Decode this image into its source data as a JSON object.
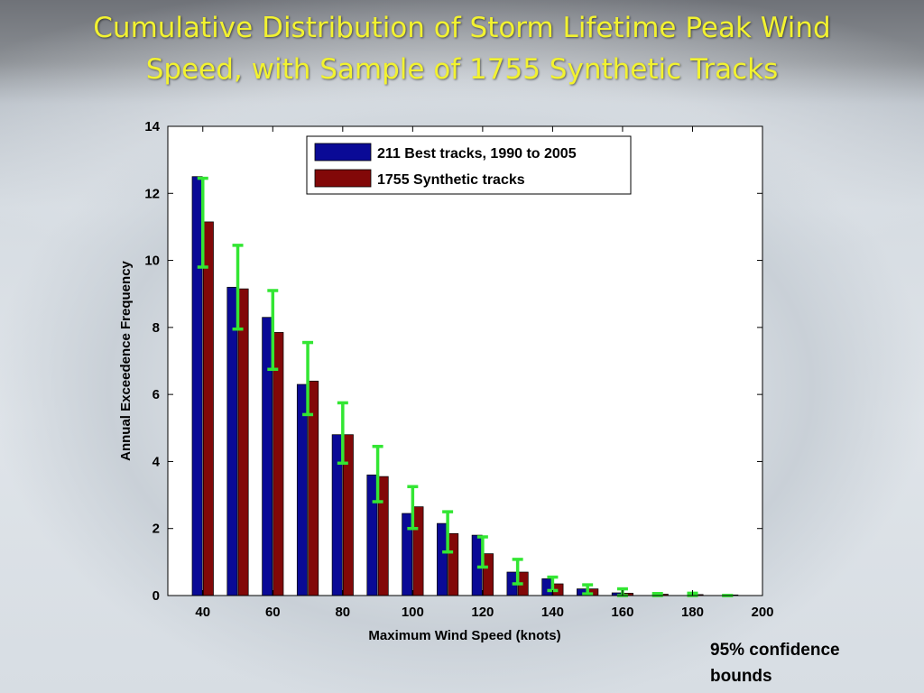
{
  "slide": {
    "title_line1": "Cumulative Distribution of Storm Lifetime Peak Wind",
    "title_line2": "Speed, with Sample of 1755 Synthetic Tracks",
    "note_line1": "95% confidence",
    "note_line2": "bounds"
  },
  "colors": {
    "title": "#f2f230",
    "best_tracks": "#0a0a96",
    "synthetic_tracks": "#820808",
    "error_bars": "#33e633"
  },
  "chart_data": {
    "type": "bar",
    "xlabel": "Maximum Wind Speed (knots)",
    "ylabel": "Annual Exceedence Frequency",
    "xlim": [
      30,
      200
    ],
    "ylim": [
      0,
      14
    ],
    "xticks": [
      40,
      60,
      80,
      100,
      120,
      140,
      160,
      180,
      200
    ],
    "yticks": [
      0,
      2,
      4,
      6,
      8,
      10,
      12,
      14
    ],
    "x": [
      40,
      50,
      60,
      70,
      80,
      90,
      100,
      110,
      120,
      130,
      140,
      150,
      160,
      170,
      180,
      190
    ],
    "series": [
      {
        "name": "211 Best tracks, 1990 to 2005",
        "color": "#0a0a96",
        "values": [
          12.5,
          9.2,
          8.3,
          6.3,
          4.8,
          3.6,
          2.45,
          2.15,
          1.8,
          0.7,
          0.5,
          0.2,
          0.08,
          0.0,
          0.0,
          0.0
        ]
      },
      {
        "name": "1755 Synthetic tracks",
        "color": "#820808",
        "values": [
          11.15,
          9.15,
          7.85,
          6.4,
          4.8,
          3.55,
          2.65,
          1.85,
          1.25,
          0.7,
          0.35,
          0.2,
          0.07,
          0.04,
          0.03,
          0.02
        ]
      }
    ],
    "confidence_bounds": {
      "lower": [
        9.8,
        7.95,
        6.75,
        5.4,
        3.95,
        2.8,
        2.0,
        1.3,
        0.85,
        0.35,
        0.15,
        0.05,
        0.0,
        0.0,
        0.0,
        0.0
      ],
      "upper": [
        12.45,
        10.45,
        9.1,
        7.55,
        5.75,
        4.45,
        3.25,
        2.5,
        1.75,
        1.08,
        0.55,
        0.32,
        0.2,
        0.06,
        0.07,
        0.0
      ]
    },
    "legend_position": "top-center",
    "grid": false
  }
}
